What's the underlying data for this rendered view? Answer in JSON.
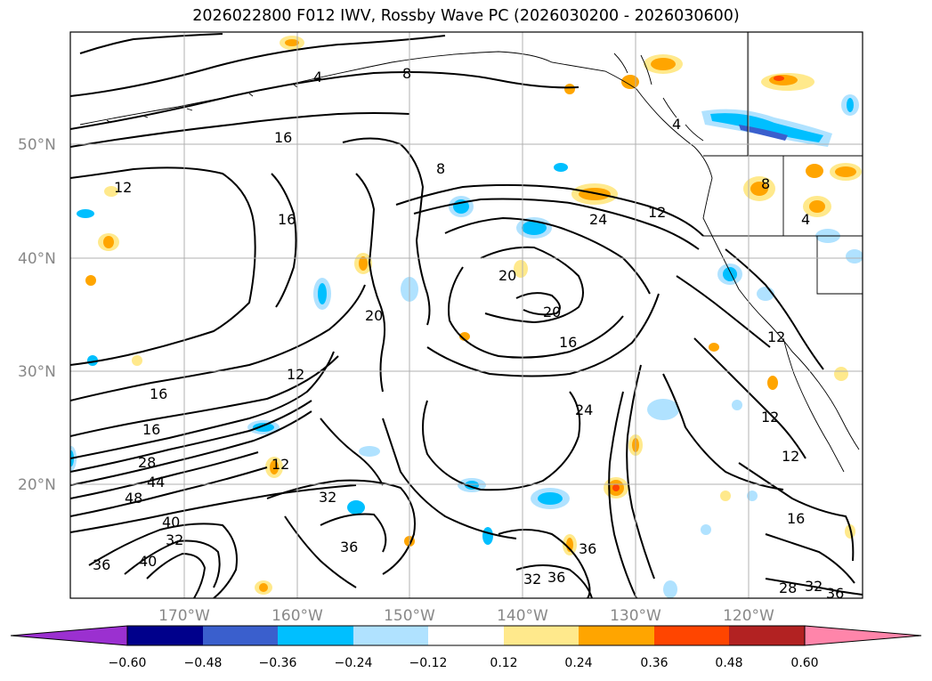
{
  "title": "2026022800 F012 IWV, Rossby Wave PC (2026030200 - 2026030600)",
  "lat_labels": [
    "50°N",
    "40°N",
    "30°N",
    "20°N"
  ],
  "lon_labels": [
    "170°W",
    "160°W",
    "150°W",
    "140°W",
    "130°W",
    "120°W"
  ],
  "colorbar": {
    "ticks": [
      "−0.60",
      "−0.48",
      "−0.36",
      "−0.24",
      "−0.12",
      "0.12",
      "0.24",
      "0.36",
      "0.48",
      "0.60"
    ],
    "colors": [
      "#9b30d0",
      "#00008b",
      "#3a5fcd",
      "#00bfff",
      "#b0e2ff",
      "#ffffff",
      "#ffe98c",
      "#ffa500",
      "#ff4500",
      "#b22222",
      "#ff85aa"
    ]
  },
  "contour_labels": [
    "4",
    "8",
    "16",
    "12",
    "16",
    "8",
    "12",
    "24",
    "12",
    "16",
    "20",
    "20",
    "16",
    "4",
    "8",
    "4",
    "12",
    "20",
    "16",
    "12",
    "28",
    "44",
    "48",
    "40",
    "32",
    "36",
    "40",
    "32",
    "36",
    "24",
    "36",
    "32",
    "36",
    "12",
    "12",
    "16",
    "28",
    "32",
    "36"
  ],
  "legend_colors": {
    "contour": "#000000",
    "coast": "#000000",
    "grid": "#b0b0b0"
  }
}
